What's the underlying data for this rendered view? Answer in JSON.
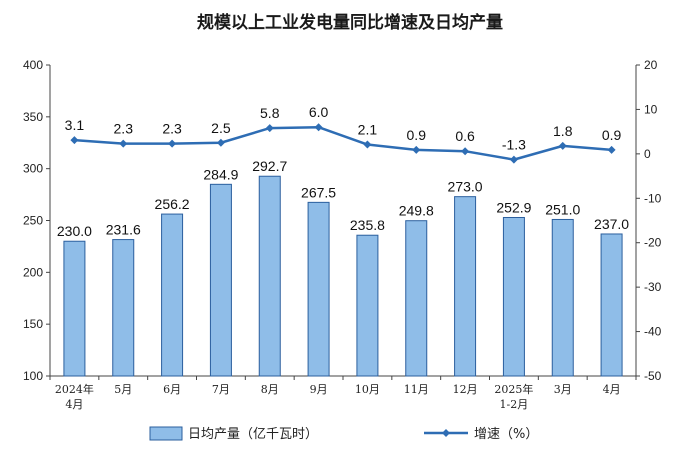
{
  "chart_data": {
    "type": "bar",
    "title": "规模以上工业发电量同比增速及日均产量",
    "categories": [
      [
        "2024年",
        "4月"
      ],
      [
        "5月"
      ],
      [
        "6月"
      ],
      [
        "7月"
      ],
      [
        "8月"
      ],
      [
        "9月"
      ],
      [
        "10月"
      ],
      [
        "11月"
      ],
      [
        "12月"
      ],
      [
        "2025年",
        "1-2月"
      ],
      [
        "3月"
      ],
      [
        "4月"
      ]
    ],
    "series": [
      {
        "name": "日均产量（亿千瓦时）",
        "type": "bar",
        "axis": "left",
        "color": "#8fbde8",
        "edge_color": "#2b5f9e",
        "values": [
          230.0,
          231.6,
          256.2,
          284.9,
          292.7,
          267.5,
          235.8,
          249.8,
          273.0,
          252.9,
          251.0,
          237.0
        ],
        "labels": [
          "230.0",
          "231.6",
          "256.2",
          "284.9",
          "292.7",
          "267.5",
          "235.8",
          "249.8",
          "273.0",
          "252.9",
          "251.0",
          "237.0"
        ]
      },
      {
        "name": "增速（%）",
        "type": "line",
        "axis": "right",
        "color": "#2e6db4",
        "values": [
          3.1,
          2.3,
          2.3,
          2.5,
          5.8,
          6.0,
          2.1,
          0.9,
          0.6,
          -1.3,
          1.8,
          0.9
        ],
        "labels": [
          "3.1",
          "2.3",
          "2.3",
          "2.5",
          "5.8",
          "6.0",
          "2.1",
          "0.9",
          "0.6",
          "-1.3",
          "1.8",
          "0.9"
        ]
      }
    ],
    "y_left": {
      "min": 100,
      "max": 400,
      "ticks": [
        "100",
        "150",
        "200",
        "250",
        "300",
        "350",
        "400"
      ]
    },
    "y_right": {
      "min": -50,
      "max": 20,
      "ticks": [
        "-50",
        "-40",
        "-30",
        "-20",
        "-10",
        "0",
        "10",
        "20"
      ]
    },
    "grid": false,
    "legend_position": "bottom"
  }
}
